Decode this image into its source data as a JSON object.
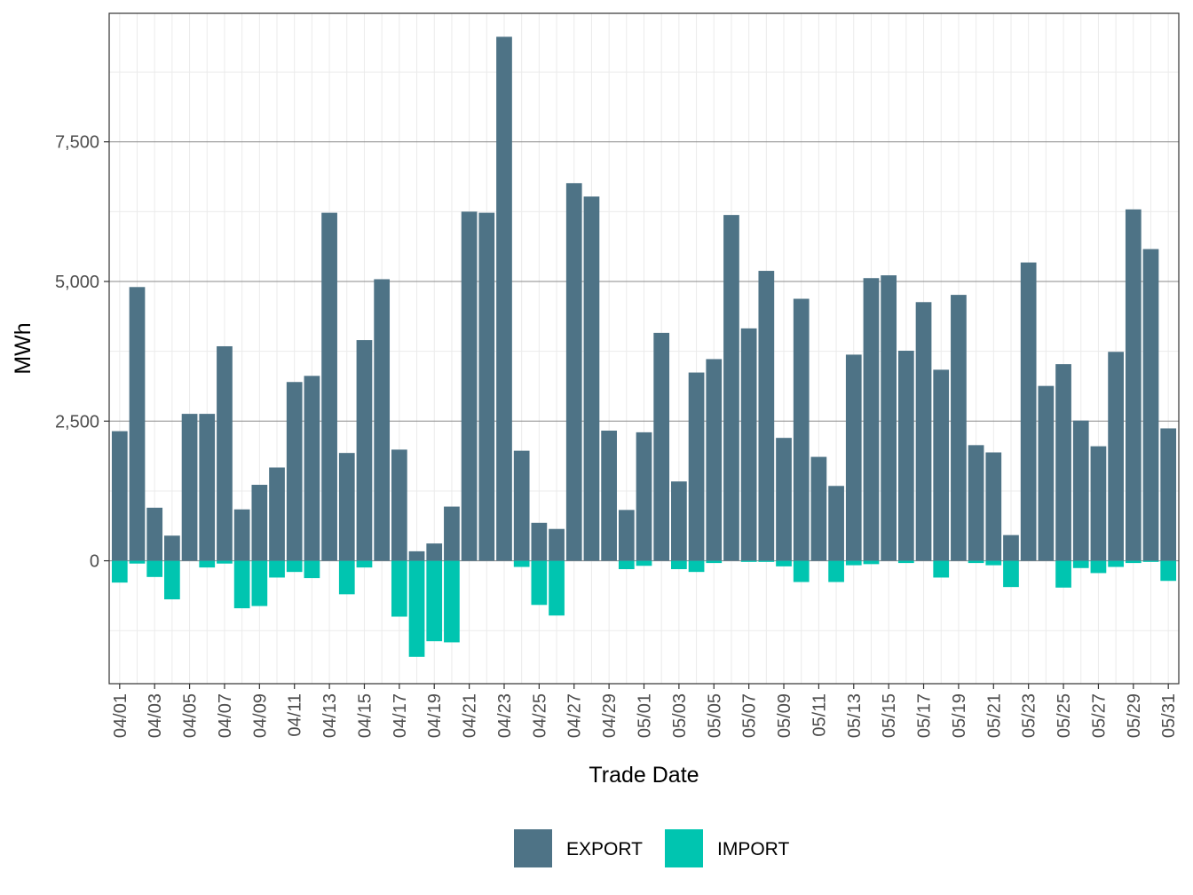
{
  "chart_data": {
    "type": "bar",
    "stacked": true,
    "title": "",
    "xlabel": "Trade Date",
    "ylabel": "MWh",
    "ylim": [
      -2200,
      9800
    ],
    "yticks": [
      0,
      2500,
      5000,
      7500
    ],
    "ytick_labels": [
      "0",
      "2,500",
      "5,000",
      "7,500"
    ],
    "grid": true,
    "legend_position": "bottom",
    "categories": [
      "04/01",
      "04/02",
      "04/03",
      "04/04",
      "04/05",
      "04/06",
      "04/07",
      "04/08",
      "04/09",
      "04/10",
      "04/11",
      "04/12",
      "04/13",
      "04/14",
      "04/15",
      "04/16",
      "04/17",
      "04/18",
      "04/19",
      "04/20",
      "04/21",
      "04/22",
      "04/23",
      "04/24",
      "04/25",
      "04/26",
      "04/27",
      "04/28",
      "04/29",
      "04/30",
      "05/01",
      "05/02",
      "05/03",
      "05/04",
      "05/05",
      "05/06",
      "05/07",
      "05/08",
      "05/09",
      "05/10",
      "05/11",
      "05/12",
      "05/13",
      "05/14",
      "05/15",
      "05/16",
      "05/17",
      "05/18",
      "05/19",
      "05/20",
      "05/21",
      "05/22",
      "05/23",
      "05/24",
      "05/25",
      "05/26",
      "05/27",
      "05/28",
      "05/29",
      "05/30",
      "05/31"
    ],
    "xtick_labels": [
      "04/01",
      "04/03",
      "04/05",
      "04/07",
      "04/09",
      "04/11",
      "04/13",
      "04/15",
      "04/17",
      "04/19",
      "04/21",
      "04/23",
      "04/25",
      "04/27",
      "04/29",
      "05/01",
      "05/03",
      "05/05",
      "05/07",
      "05/09",
      "05/11",
      "05/13",
      "05/15",
      "05/17",
      "05/19",
      "05/21",
      "05/23",
      "05/25",
      "05/27",
      "05/29",
      "05/31"
    ],
    "series": [
      {
        "name": "EXPORT",
        "color": "#4e7386",
        "values": [
          2320,
          4900,
          950,
          450,
          2630,
          2630,
          3840,
          920,
          1360,
          1670,
          3200,
          3310,
          6230,
          1930,
          3950,
          5040,
          1990,
          170,
          310,
          970,
          6250,
          6230,
          9380,
          1970,
          680,
          570,
          6760,
          6520,
          2330,
          910,
          2300,
          4080,
          1420,
          3370,
          3610,
          6190,
          4160,
          5190,
          2200,
          4690,
          1860,
          1340,
          3690,
          5060,
          5110,
          3760,
          4630,
          3420,
          4760,
          2070,
          1940,
          460,
          5340,
          3130,
          3520,
          2510,
          2050,
          3740,
          6290,
          5580,
          2370
        ]
      },
      {
        "name": "IMPORT",
        "color": "#00c5b0",
        "values": [
          -390,
          -50,
          -290,
          -690,
          0,
          -120,
          -50,
          -850,
          -810,
          -300,
          -200,
          -310,
          0,
          -600,
          -120,
          0,
          -1000,
          -1720,
          -1440,
          -1460,
          0,
          0,
          0,
          -110,
          -790,
          -980,
          0,
          0,
          0,
          -150,
          -90,
          0,
          -150,
          -200,
          -40,
          0,
          -20,
          -20,
          -100,
          -380,
          0,
          -380,
          -80,
          -60,
          0,
          -40,
          0,
          -300,
          0,
          -40,
          -80,
          -470,
          0,
          0,
          -480,
          -130,
          -220,
          -110,
          -40,
          -20,
          -360
        ]
      }
    ]
  }
}
